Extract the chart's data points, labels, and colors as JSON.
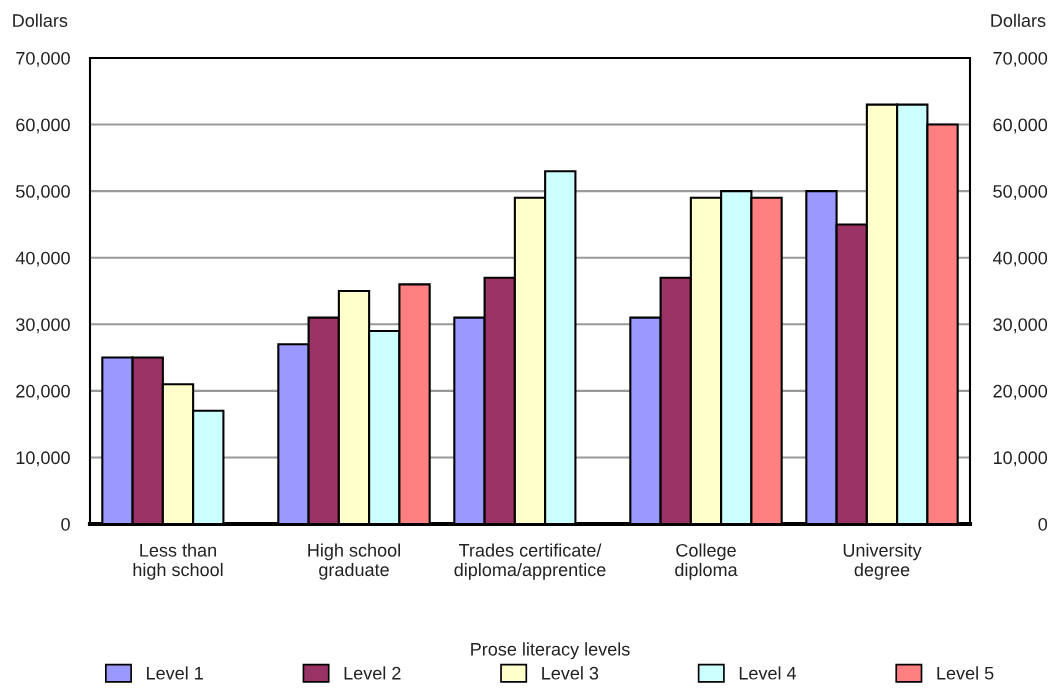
{
  "chart_data": {
    "type": "bar",
    "categories": [
      "Less than\nhigh school",
      "High school\ngraduate",
      "Trades certificate/\ndiploma/apprentice",
      "College\ndiploma",
      "University\ndegree"
    ],
    "series": [
      {
        "name": "Level 1",
        "color": "#9999ff",
        "values": [
          25000,
          27000,
          31000,
          31000,
          50000
        ]
      },
      {
        "name": "Level 2",
        "color": "#993366",
        "values": [
          25000,
          31000,
          37000,
          37000,
          45000
        ]
      },
      {
        "name": "Level 3",
        "color": "#ffffcc",
        "values": [
          21000,
          35000,
          49000,
          49000,
          63000
        ]
      },
      {
        "name": "Level 4",
        "color": "#ccffff",
        "values": [
          17000,
          29000,
          53000,
          50000,
          63000
        ]
      },
      {
        "name": "Level 5",
        "color": "#ff8080",
        "values": [
          null,
          36000,
          null,
          49000,
          60000
        ]
      }
    ],
    "ylabel": "Dollars",
    "y2label": "Dollars",
    "ylim": [
      0,
      70000
    ],
    "yticks": [
      0,
      {
        "value": 10000,
        "label": "10,000"
      },
      {
        "value": 20000,
        "label": "20,000"
      },
      {
        "value": 30000,
        "label": "30,000"
      },
      {
        "value": 40000,
        "label": "40,000"
      },
      {
        "value": 50000,
        "label": "50,000"
      },
      {
        "value": 60000,
        "label": "60,000"
      },
      {
        "value": 70000,
        "label": "70,000"
      }
    ],
    "y2lim": [
      0,
      70000
    ],
    "y2ticks": [
      0,
      {
        "value": 10000,
        "label": "10,000"
      },
      {
        "value": 20000,
        "label": "20,000"
      },
      {
        "value": 30000,
        "label": "30,000"
      },
      {
        "value": 40000,
        "label": "40,000"
      },
      {
        "value": 50000,
        "label": "50,000"
      },
      {
        "value": 60000,
        "label": "60,000"
      },
      {
        "value": 70000,
        "label": "70,000"
      }
    ],
    "grid": "y",
    "legend": "bottom",
    "legend_title": "Prose literacy levels"
  }
}
